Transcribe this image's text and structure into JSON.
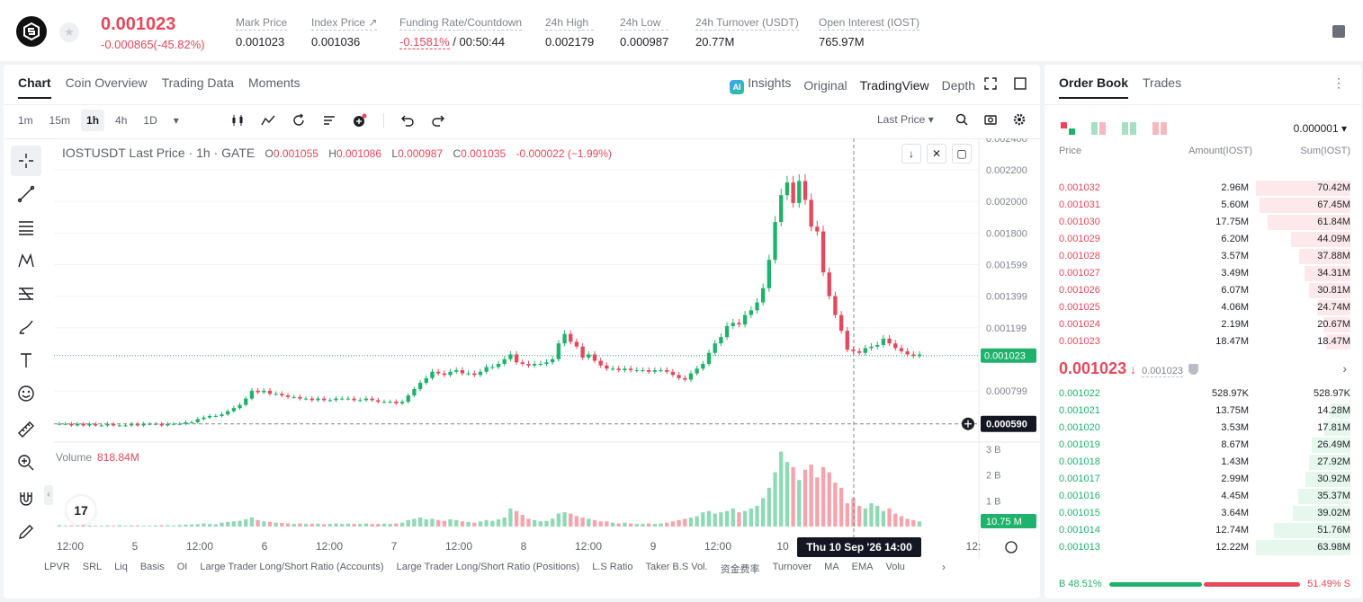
{
  "header": {
    "last_price": "0.001023",
    "change": "-0.000865(-45.82%)",
    "stats": [
      {
        "label": "Mark Price",
        "value": "0.001023"
      },
      {
        "label": "Index Price ↗",
        "value": "0.001036"
      },
      {
        "label": "Funding Rate/Countdown",
        "value_red": "-0.1581%",
        "value": " / 00:50:44"
      },
      {
        "label": "24h High",
        "value": "0.002179"
      },
      {
        "label": "24h Low",
        "value": "0.000987"
      },
      {
        "label": "24h Turnover (USDT)",
        "value": "20.77M"
      },
      {
        "label": "Open Interest (IOST)",
        "value": "765.97M"
      }
    ]
  },
  "chart_tabs": [
    "Chart",
    "Coin Overview",
    "Trading Data",
    "Moments"
  ],
  "view_tabs": {
    "insights": "Insights",
    "original": "Original",
    "tradingview": "TradingView",
    "depth": "Depth"
  },
  "intervals": [
    "1m",
    "15m",
    "1h",
    "4h",
    "1D"
  ],
  "last_price_select": "Last Price ▾",
  "ohlc": {
    "title": "IOSTUSDT Last Price · 1h · GATE",
    "o_label": "O",
    "o": "0.001055",
    "h_label": "H",
    "h": "0.001086",
    "l_label": "L",
    "l": "0.000987",
    "c_label": "C",
    "c": "0.001035",
    "delta": "-0.000022 (−1.99%)"
  },
  "volume": {
    "label": "Volume",
    "value": "818.84M"
  },
  "bottom_tabs": [
    "LPVR",
    "SRL",
    "Liq",
    "Basis",
    "OI",
    "Large Trader Long/Short Ratio (Accounts)",
    "Large Trader Long/Short Ratio (Positions)",
    "L.S Ratio",
    "Taker B.S Vol.",
    "资金费率",
    "Turnover",
    "MA",
    "EMA",
    "Volu"
  ],
  "colors": {
    "up": "#20b26c",
    "down": "#e5485b",
    "up_vol": "#8fd9b6",
    "down_vol": "#f5a3ad"
  },
  "chart_data": {
    "type": "candlestick",
    "symbol": "IOSTUSDT",
    "interval": "1h",
    "y_ticks": [
      "0.002400",
      "0.002200",
      "0.002000",
      "0.001800",
      "0.001599",
      "0.001399",
      "0.001199",
      "0.000799"
    ],
    "y_range": [
      0.00052,
      0.0024
    ],
    "x_ticks": [
      "12:00",
      "5",
      "12:00",
      "6",
      "12:00",
      "7",
      "12:00",
      "8",
      "12:00",
      "9",
      "12:00",
      "10"
    ],
    "x_tail_tick": "12:",
    "last_price_label": "0.001023",
    "crosshair_price_label": "0.000590",
    "crosshair_price": 0.00059,
    "crosshair_time_label": "Thu 10 Sep '26   14:00",
    "volume_ticks": [
      "3 B",
      "2 B",
      "1 B"
    ],
    "volume_last_label": "10.75 M",
    "volume_range_b": [
      0,
      3.2
    ],
    "close_series": [
      0.00059,
      0.00059,
      0.00058,
      0.00059,
      0.00058,
      0.00059,
      0.00058,
      0.00058,
      0.00059,
      0.00058,
      0.00058,
      0.00058,
      0.00059,
      0.00058,
      0.00059,
      0.00059,
      0.00059,
      0.00058,
      0.00059,
      0.00059,
      0.00059,
      0.0006,
      0.0006,
      0.00062,
      0.00063,
      0.00064,
      0.00064,
      0.00065,
      0.00067,
      0.00069,
      0.00071,
      0.00075,
      0.0008,
      0.00079,
      0.0008,
      0.00078,
      0.00078,
      0.00077,
      0.00076,
      0.00076,
      0.00075,
      0.00075,
      0.00074,
      0.00075,
      0.00074,
      0.00074,
      0.00075,
      0.00075,
      0.00075,
      0.00074,
      0.00074,
      0.00075,
      0.00074,
      0.00073,
      0.00073,
      0.00073,
      0.00072,
      0.00073,
      0.00077,
      0.00081,
      0.00085,
      0.00088,
      0.00092,
      0.00091,
      0.0009,
      0.00092,
      0.00093,
      0.00091,
      0.00091,
      0.0009,
      0.00092,
      0.00095,
      0.00095,
      0.00097,
      0.001,
      0.00103,
      0.00098,
      0.00097,
      0.00096,
      0.00097,
      0.00097,
      0.00098,
      0.001,
      0.0011,
      0.00116,
      0.00111,
      0.00108,
      0.00101,
      0.00103,
      0.00099,
      0.00096,
      0.00094,
      0.00094,
      0.00093,
      0.00094,
      0.00093,
      0.00093,
      0.00093,
      0.00092,
      0.00093,
      0.00093,
      0.00092,
      0.0009,
      0.00088,
      0.00087,
      0.00091,
      0.00094,
      0.00097,
      0.00104,
      0.0011,
      0.00114,
      0.00121,
      0.00123,
      0.00122,
      0.00128,
      0.00131,
      0.00136,
      0.00145,
      0.00163,
      0.00187,
      0.00204,
      0.00212,
      0.00199,
      0.00213,
      0.00201,
      0.00184,
      0.00181,
      0.00155,
      0.0014,
      0.00128,
      0.00118,
      0.00106,
      0.00105,
      0.00104,
      0.00107,
      0.00108,
      0.00109,
      0.00113,
      0.0011,
      0.00107,
      0.00105,
      0.00103,
      0.00102,
      0.00103
    ],
    "volume_series_b": [
      0.05,
      0.03,
      0.04,
      0.03,
      0.05,
      0.04,
      0.03,
      0.03,
      0.04,
      0.03,
      0.05,
      0.03,
      0.04,
      0.04,
      0.03,
      0.03,
      0.04,
      0.05,
      0.05,
      0.04,
      0.06,
      0.07,
      0.08,
      0.09,
      0.12,
      0.1,
      0.09,
      0.15,
      0.18,
      0.2,
      0.22,
      0.28,
      0.35,
      0.25,
      0.2,
      0.18,
      0.15,
      0.14,
      0.12,
      0.1,
      0.12,
      0.1,
      0.1,
      0.11,
      0.09,
      0.1,
      0.12,
      0.1,
      0.11,
      0.1,
      0.1,
      0.12,
      0.1,
      0.1,
      0.11,
      0.1,
      0.12,
      0.15,
      0.25,
      0.3,
      0.35,
      0.28,
      0.3,
      0.25,
      0.22,
      0.28,
      0.25,
      0.2,
      0.18,
      0.15,
      0.2,
      0.25,
      0.22,
      0.28,
      0.35,
      0.7,
      0.6,
      0.45,
      0.3,
      0.25,
      0.2,
      0.22,
      0.3,
      0.5,
      0.55,
      0.5,
      0.4,
      0.35,
      0.3,
      0.25,
      0.2,
      0.2,
      0.15,
      0.12,
      0.15,
      0.12,
      0.1,
      0.1,
      0.12,
      0.1,
      0.12,
      0.15,
      0.2,
      0.25,
      0.3,
      0.35,
      0.4,
      0.55,
      0.6,
      0.5,
      0.55,
      0.6,
      0.7,
      0.55,
      0.6,
      0.7,
      0.8,
      1.1,
      1.5,
      2.1,
      2.9,
      2.5,
      2.3,
      1.8,
      2.2,
      2.4,
      1.9,
      2.3,
      2.1,
      1.7,
      1.5,
      0.9,
      1.1,
      0.8,
      0.7,
      0.9,
      0.8,
      0.6,
      0.7,
      0.5,
      0.4,
      0.3,
      0.25,
      0.2
    ]
  },
  "orderbook": {
    "tabs": [
      "Order Book",
      "Trades"
    ],
    "precision": "0.000001 ▾",
    "headers": {
      "price": "Price",
      "amount": "Amount(IOST)",
      "sum": "Sum(IOST)"
    },
    "asks": [
      {
        "price": "0.001032",
        "amount": "2.96M",
        "sum": "70.42M",
        "depth": 1.0
      },
      {
        "price": "0.001031",
        "amount": "5.60M",
        "sum": "67.45M",
        "depth": 0.96
      },
      {
        "price": "0.001030",
        "amount": "17.75M",
        "sum": "61.84M",
        "depth": 0.88
      },
      {
        "price": "0.001029",
        "amount": "6.20M",
        "sum": "44.09M",
        "depth": 0.63
      },
      {
        "price": "0.001028",
        "amount": "3.57M",
        "sum": "37.88M",
        "depth": 0.54
      },
      {
        "price": "0.001027",
        "amount": "3.49M",
        "sum": "34.31M",
        "depth": 0.49
      },
      {
        "price": "0.001026",
        "amount": "6.07M",
        "sum": "30.81M",
        "depth": 0.44
      },
      {
        "price": "0.001025",
        "amount": "4.06M",
        "sum": "24.74M",
        "depth": 0.35
      },
      {
        "price": "0.001024",
        "amount": "2.19M",
        "sum": "20.67M",
        "depth": 0.29
      },
      {
        "price": "0.001023",
        "amount": "18.47M",
        "sum": "18.47M",
        "depth": 0.26
      }
    ],
    "mid_price": "0.001023",
    "mid_arrow": "↓",
    "mid_mark": "0.001023",
    "bids": [
      {
        "price": "0.001022",
        "amount": "528.97K",
        "sum": "528.97K",
        "depth": 0.01
      },
      {
        "price": "0.001021",
        "amount": "13.75M",
        "sum": "14.28M",
        "depth": 0.22
      },
      {
        "price": "0.001020",
        "amount": "3.53M",
        "sum": "17.81M",
        "depth": 0.28
      },
      {
        "price": "0.001019",
        "amount": "8.67M",
        "sum": "26.49M",
        "depth": 0.41
      },
      {
        "price": "0.001018",
        "amount": "1.43M",
        "sum": "27.92M",
        "depth": 0.44
      },
      {
        "price": "0.001017",
        "amount": "2.99M",
        "sum": "30.92M",
        "depth": 0.48
      },
      {
        "price": "0.001016",
        "amount": "4.45M",
        "sum": "35.37M",
        "depth": 0.55
      },
      {
        "price": "0.001015",
        "amount": "3.64M",
        "sum": "39.02M",
        "depth": 0.61
      },
      {
        "price": "0.001014",
        "amount": "12.74M",
        "sum": "51.76M",
        "depth": 0.81
      },
      {
        "price": "0.001013",
        "amount": "12.22M",
        "sum": "63.98M",
        "depth": 1.0
      }
    ],
    "buy_ratio": "B 48.51%",
    "sell_ratio": "51.49% S",
    "buy_ratio_value": 0.4851
  }
}
